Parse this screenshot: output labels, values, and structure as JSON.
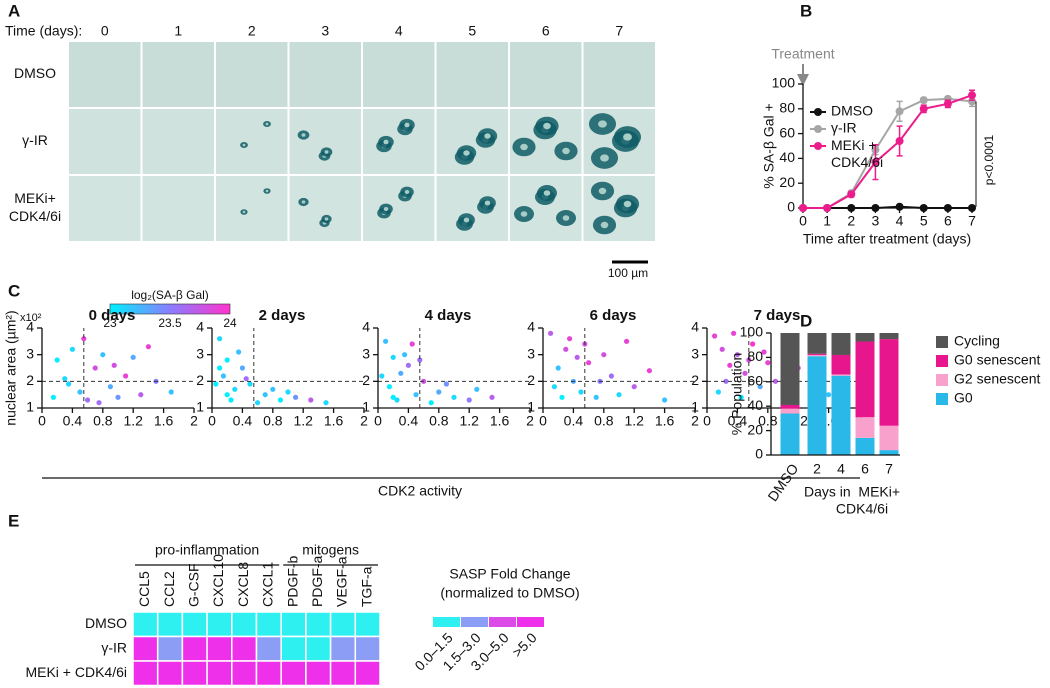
{
  "panel_labels": [
    "A",
    "B",
    "C",
    "D",
    "E"
  ],
  "panel_a": {
    "header": "Time (days):",
    "days": [
      "0",
      "1",
      "2",
      "3",
      "4",
      "5",
      "6",
      "7"
    ],
    "rows": [
      [
        "DMSO"
      ],
      [
        "γ-IR"
      ],
      [
        "MEKi+",
        "CDK4/6i"
      ]
    ],
    "scale_bar": "100 µm"
  },
  "chart_data": [
    {
      "type": "line",
      "annotation": "Treatment",
      "p_value": "p<0.0001",
      "xlabel": "Time after treatment (days)",
      "ylabel": "% SA-β Gal +",
      "x": [
        0,
        1,
        2,
        3,
        4,
        5,
        6,
        7
      ],
      "xlim": [
        0,
        7
      ],
      "xticks": [
        0,
        1,
        2,
        3,
        4,
        5,
        6,
        7
      ],
      "ylim": [
        0,
        100
      ],
      "yticks": [
        0,
        20,
        40,
        60,
        80,
        100
      ],
      "series": [
        {
          "name": "DMSO",
          "color": "#111111",
          "values": [
            0,
            0,
            0,
            0,
            1,
            0,
            0,
            0
          ],
          "errors": [
            0,
            0,
            0,
            0,
            1,
            1,
            0,
            0
          ]
        },
        {
          "name": "γ-IR",
          "color": "#a6a6a6",
          "values": [
            0,
            0,
            12,
            47,
            78,
            87,
            88,
            86
          ],
          "errors": [
            0,
            0,
            2,
            4,
            8,
            2,
            1,
            4
          ]
        },
        {
          "name": "MEKi + CDK4/6i",
          "color": "#ec1c8c",
          "values": [
            0,
            0,
            11,
            37,
            54,
            80,
            84,
            91
          ],
          "errors": [
            0,
            1,
            2,
            14,
            12,
            3,
            3,
            4
          ]
        }
      ]
    },
    {
      "type": "scatter",
      "xlabel": "CDK2 activity",
      "ylabel": "nuclear area (µm²)",
      "y_multiplier": "x10²",
      "xlim": [
        0,
        2
      ],
      "xticks": [
        0,
        0.4,
        0.8,
        1.2,
        1.6,
        2
      ],
      "ylim": [
        1,
        4
      ],
      "yticks": [
        1,
        2,
        3,
        4
      ],
      "guides": {
        "x": 0.55,
        "y": 2
      },
      "colorbar": {
        "label": "log₂(SA-β Gal)",
        "lim": [
          23,
          24
        ],
        "ticks": [
          23,
          23.5,
          24
        ],
        "colors": [
          "#00f0ff",
          "#8a7dff",
          "#ff33cc"
        ]
      },
      "panels": [
        {
          "title": "0 days",
          "x": [
            0.3,
            0.5,
            0.7,
            0.9,
            0.4,
            0.6,
            1.1,
            1.3,
            0.2,
            0.8,
            1.0,
            1.5,
            0.55,
            0.35,
            1.2,
            0.75,
            1.7,
            0.15,
            0.95,
            1.4
          ],
          "y": [
            2.1,
            1.6,
            2.5,
            1.8,
            3.2,
            1.3,
            2.2,
            1.5,
            2.8,
            3.0,
            1.4,
            2.0,
            3.6,
            1.9,
            2.9,
            1.2,
            1.6,
            1.4,
            2.6,
            3.3
          ],
          "c": [
            23.1,
            23.2,
            23.8,
            23.3,
            23.1,
            23.6,
            23.9,
            23.7,
            23.0,
            23.2,
            23.4,
            23.5,
            23.9,
            23.1,
            23.3,
            23.6,
            23.2,
            23.0,
            23.8,
            23.9
          ]
        },
        {
          "title": "2 days",
          "x": [
            0.1,
            0.2,
            0.15,
            0.3,
            0.4,
            0.25,
            0.5,
            0.7,
            0.9,
            1.1,
            0.35,
            0.05,
            0.6,
            1.3,
            0.2,
            0.8,
            1.5,
            0.45,
            0.1,
            1.0
          ],
          "y": [
            3.6,
            2.8,
            2.2,
            1.7,
            2.5,
            1.3,
            1.9,
            1.5,
            1.3,
            1.4,
            3.1,
            1.9,
            1.2,
            1.3,
            1.5,
            1.7,
            1.2,
            2.1,
            2.5,
            1.6
          ],
          "c": [
            23.1,
            23.0,
            23.2,
            23.1,
            23.3,
            23.0,
            23.1,
            23.2,
            23.0,
            23.4,
            23.2,
            23.0,
            23.1,
            23.7,
            23.0,
            23.2,
            23.1,
            23.6,
            23.0,
            23.1
          ]
        },
        {
          "title": "4 days",
          "x": [
            0.1,
            0.2,
            0.3,
            0.15,
            0.4,
            0.5,
            0.25,
            0.6,
            0.8,
            1.0,
            1.2,
            0.35,
            0.7,
            1.5,
            0.05,
            0.9,
            0.45,
            1.3,
            0.2,
            0.55
          ],
          "y": [
            3.5,
            2.9,
            2.3,
            1.8,
            2.6,
            1.5,
            1.3,
            2.0,
            1.6,
            1.4,
            1.3,
            3.0,
            1.2,
            1.4,
            2.2,
            1.9,
            3.4,
            1.7,
            1.4,
            2.8
          ],
          "c": [
            23.2,
            23.1,
            23.3,
            23.0,
            23.6,
            23.2,
            23.1,
            23.8,
            23.3,
            23.1,
            23.5,
            23.2,
            23.0,
            23.7,
            23.1,
            23.4,
            23.9,
            23.2,
            23.0,
            23.6
          ]
        },
        {
          "title": "6 days",
          "x": [
            0.1,
            0.2,
            0.3,
            0.4,
            0.5,
            0.6,
            0.7,
            0.8,
            0.9,
            1.0,
            1.2,
            1.4,
            0.15,
            0.35,
            0.55,
            0.75,
            1.6,
            0.25,
            0.45,
            1.1
          ],
          "y": [
            3.8,
            2.5,
            3.2,
            2.0,
            1.6,
            2.7,
            1.4,
            3.0,
            2.2,
            1.5,
            1.8,
            2.4,
            1.8,
            3.6,
            3.4,
            2.0,
            1.3,
            1.4,
            2.9,
            3.5
          ],
          "c": [
            23.7,
            23.2,
            23.8,
            23.3,
            23.1,
            23.9,
            23.2,
            23.8,
            23.6,
            23.1,
            23.7,
            23.9,
            23.1,
            23.9,
            23.8,
            23.5,
            23.2,
            23.0,
            23.7,
            23.9
          ]
        },
        {
          "title": "7 days",
          "x": [
            0.1,
            0.2,
            0.3,
            0.4,
            0.5,
            0.6,
            0.7,
            0.8,
            0.9,
            1.0,
            1.2,
            1.4,
            0.15,
            0.35,
            0.55,
            0.75,
            1.6,
            0.25,
            0.45,
            1.1
          ],
          "y": [
            3.7,
            3.2,
            2.6,
            3.0,
            2.3,
            3.4,
            1.8,
            2.7,
            2.0,
            1.6,
            2.5,
            2.1,
            1.6,
            3.8,
            2.8,
            3.1,
            1.5,
            2.0,
            1.4,
            3.3
          ],
          "c": [
            23.9,
            23.8,
            23.9,
            23.7,
            23.8,
            24.0,
            23.3,
            23.9,
            23.7,
            23.2,
            23.8,
            23.9,
            23.1,
            23.9,
            23.8,
            23.9,
            23.2,
            23.6,
            23.0,
            23.9
          ]
        }
      ]
    },
    {
      "type": "bar",
      "stacked": true,
      "ylabel": "% Population",
      "xlabel": [
        "Days in  MEKi+",
        "CDK4/6i"
      ],
      "categories": [
        "DMSO",
        "2",
        "4",
        "6",
        "7"
      ],
      "ylim": [
        0,
        100
      ],
      "yticks": [
        0,
        20,
        40,
        60,
        80,
        100
      ],
      "series": [
        {
          "name": "G0",
          "color": "#29b8e8",
          "values": [
            34,
            81,
            65,
            14,
            4
          ]
        },
        {
          "name": "G2 senescent",
          "color": "#f7a1cc",
          "values": [
            4,
            1,
            1,
            17,
            20
          ]
        },
        {
          "name": "G0 senescent",
          "color": "#e8168c",
          "values": [
            3,
            1,
            16,
            62,
            71
          ]
        },
        {
          "name": "Cycling",
          "color": "#555555",
          "values": [
            59,
            17,
            18,
            7,
            5
          ]
        }
      ]
    },
    {
      "type": "heatmap",
      "groups": [
        {
          "label": "pro-inflammation",
          "span": [
            0,
            5
          ]
        },
        {
          "label": "mitogens",
          "span": [
            6,
            9
          ]
        }
      ],
      "columns": [
        "CCL5",
        "CCL2",
        "G-CSF",
        "CXCL10",
        "CXCL8",
        "CXCL1",
        "PDGF-b",
        "PDGF-a",
        "VEGF-a",
        "TGF-a"
      ],
      "rows": [
        "DMSO",
        "γ-IR",
        "MEKi + CDK4/6i"
      ],
      "values": [
        [
          0,
          0,
          0,
          0,
          0,
          0,
          0,
          0,
          0,
          0
        ],
        [
          3,
          1,
          3,
          3,
          3,
          1,
          0,
          0,
          1,
          1
        ],
        [
          3,
          3,
          3,
          3,
          3,
          3,
          3,
          3,
          3,
          3
        ]
      ],
      "legend_title": [
        "SASP Fold Change",
        "(normalized to DMSO)"
      ],
      "levels": [
        "0.0–1.5",
        "1.5–3.0",
        "3.0–5.0",
        ">5.0"
      ],
      "colors": [
        "#2ef0f0",
        "#8c9df5",
        "#dc4ae8",
        "#ee30ea"
      ]
    }
  ]
}
